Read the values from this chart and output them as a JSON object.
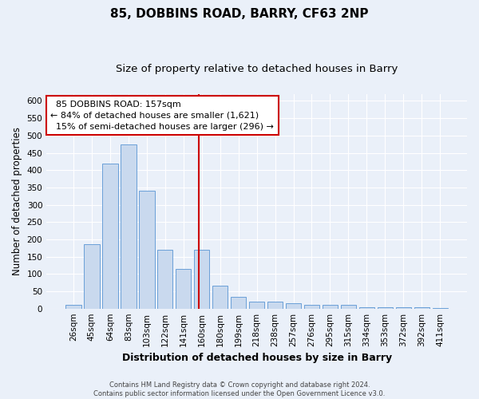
{
  "title": "85, DOBBINS ROAD, BARRY, CF63 2NP",
  "subtitle": "Size of property relative to detached houses in Barry",
  "xlabel": "Distribution of detached houses by size in Barry",
  "ylabel": "Number of detached properties",
  "categories": [
    "26sqm",
    "45sqm",
    "64sqm",
    "83sqm",
    "103sqm",
    "122sqm",
    "141sqm",
    "160sqm",
    "180sqm",
    "199sqm",
    "218sqm",
    "238sqm",
    "257sqm",
    "276sqm",
    "295sqm",
    "315sqm",
    "334sqm",
    "353sqm",
    "372sqm",
    "392sqm",
    "411sqm"
  ],
  "values": [
    10,
    185,
    420,
    475,
    340,
    170,
    115,
    170,
    65,
    35,
    20,
    20,
    15,
    10,
    10,
    10,
    5,
    5,
    5,
    5,
    2
  ],
  "bar_color": "#c9d9ee",
  "bar_edge_color": "#6a9fd8",
  "bar_width": 0.85,
  "property_size_label": "85 DOBBINS ROAD: 157sqm",
  "pct_smaller": "84% of detached houses are smaller (1,621)",
  "pct_larger": "15% of semi-detached houses are larger (296)",
  "annotation_box_color": "#ffffff",
  "annotation_box_edge": "#cc0000",
  "vline_color": "#cc0000",
  "vline_x": 6.84,
  "ylim": [
    0,
    620
  ],
  "yticks": [
    0,
    50,
    100,
    150,
    200,
    250,
    300,
    350,
    400,
    450,
    500,
    550,
    600
  ],
  "footer": "Contains HM Land Registry data © Crown copyright and database right 2024.\nContains public sector information licensed under the Open Government Licence v3.0.",
  "bg_color": "#eaf0f9",
  "grid_color": "#ffffff",
  "title_fontsize": 11,
  "subtitle_fontsize": 9.5,
  "tick_fontsize": 7.5,
  "ylabel_fontsize": 8.5,
  "xlabel_fontsize": 9,
  "annotation_fontsize": 8,
  "footer_fontsize": 6
}
